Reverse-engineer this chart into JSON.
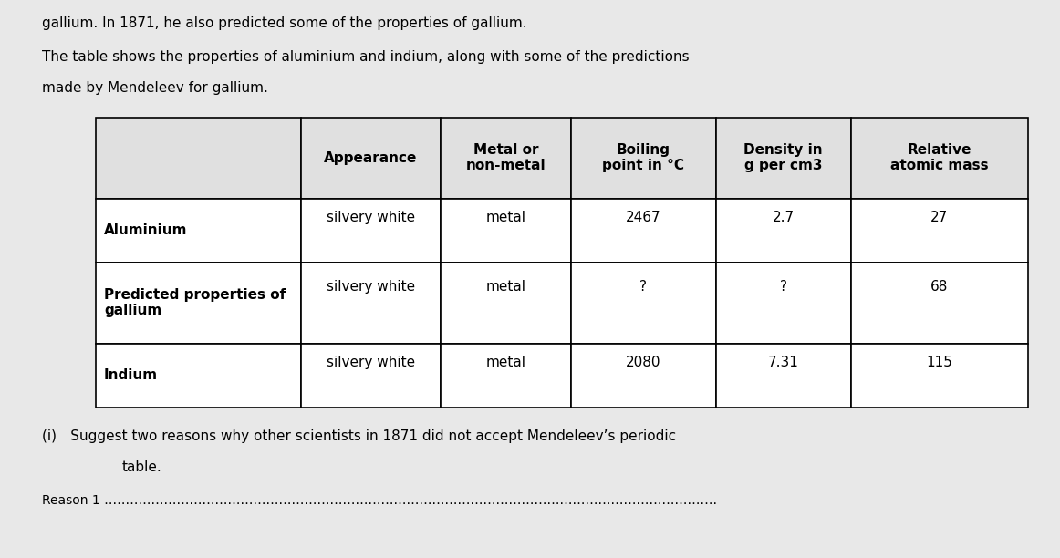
{
  "background_color": "#d8d8d8",
  "page_bg": "#e8e8e8",
  "top_text_line1": "gallium. In 1871, he also predicted some of the properties of gallium.",
  "top_text_line2": "The table shows the properties of aluminium and indium, along with some of the predictions",
  "top_text_line3": "made by Mendeleev for gallium.",
  "col_headers": [
    "Appearance",
    "Metal or\nnon-metal",
    "Boiling\npoint in °C",
    "Density in\ng per cm3",
    "Relative\natomic mass"
  ],
  "row_labels": [
    "Aluminium",
    "Predicted properties of\ngallium",
    "Indium"
  ],
  "row_data": [
    [
      "silvery white",
      "metal",
      "2467",
      "2.7",
      "27"
    ],
    [
      "silvery white",
      "metal",
      "?",
      "?",
      "68"
    ],
    [
      "silvery white",
      "metal",
      "2080",
      "7.31",
      "115"
    ]
  ],
  "bottom_text_line1": "(i) Suggest two reasons why other scientists in 1871 did not accept Mendeleev’s periodic",
  "bottom_text_line2": "table.",
  "bottom_text_line3": "Reason 1 ………………………………………………………………………………………………………………………………",
  "table_bg": "#ffffff",
  "header_bg": "#e0e0e0",
  "text_color": "#000000",
  "font_size_body": 11,
  "font_size_header": 11
}
